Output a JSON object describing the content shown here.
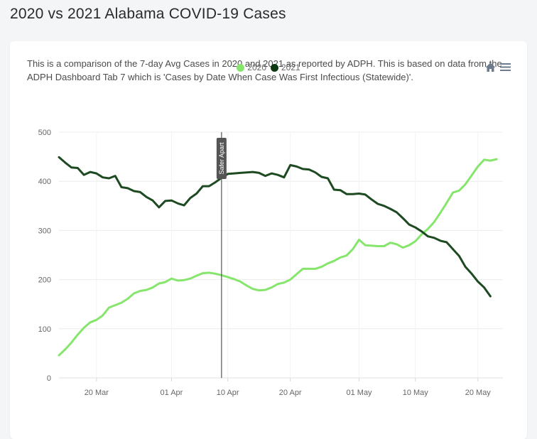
{
  "page": {
    "title": "2020 vs 2021 Alabama COVID-19 Cases",
    "description": "This is a comparison of the 7-day Avg Cases in 2020 and 2021 as reported by ADPH. This is based on data from the ADPH Dashboard Tab 7 which is 'Cases by Date When Case Was First Infectious (Statewide)'."
  },
  "colors": {
    "series_2020": "#86e56c",
    "series_2021": "#1e4a22",
    "legend_2021_dot": "#0c3a10",
    "grid": "#ececec",
    "annotation": "#555555",
    "toolbar_icon": "#6e7b8b"
  },
  "toolbar": {
    "home_icon": "home-icon",
    "menu_icon": "hamburger-menu-icon"
  },
  "chart_data": {
    "type": "line",
    "title": "",
    "xlabel": "",
    "ylabel": "",
    "ylim": [
      0,
      500
    ],
    "yticks": [
      0,
      100,
      200,
      300,
      400,
      500
    ],
    "grid": true,
    "legend_position": "top-center",
    "xlim": [
      "2021-03-14",
      "2021-05-24"
    ],
    "xticks": [
      {
        "date": "2021-03-20",
        "label": "20 Mar"
      },
      {
        "date": "2021-04-01",
        "label": "01 Apr"
      },
      {
        "date": "2021-04-10",
        "label": "10 Apr"
      },
      {
        "date": "2021-04-20",
        "label": "20 Apr"
      },
      {
        "date": "2021-05-01",
        "label": "01 May"
      },
      {
        "date": "2021-05-10",
        "label": "10 May"
      },
      {
        "date": "2021-05-20",
        "label": "20 May"
      }
    ],
    "annotations": [
      {
        "date": "2021-04-09",
        "label": "Safer Apart"
      }
    ],
    "series": [
      {
        "name": "2020",
        "color": "#86e56c",
        "points": [
          [
            "2021-03-14",
            46
          ],
          [
            "2021-03-15",
            58
          ],
          [
            "2021-03-16",
            72
          ],
          [
            "2021-03-17",
            88
          ],
          [
            "2021-03-18",
            102
          ],
          [
            "2021-03-19",
            113
          ],
          [
            "2021-03-20",
            118
          ],
          [
            "2021-03-21",
            127
          ],
          [
            "2021-03-22",
            143
          ],
          [
            "2021-03-23",
            148
          ],
          [
            "2021-03-24",
            153
          ],
          [
            "2021-03-25",
            161
          ],
          [
            "2021-03-26",
            172
          ],
          [
            "2021-03-27",
            177
          ],
          [
            "2021-03-28",
            179
          ],
          [
            "2021-03-29",
            184
          ],
          [
            "2021-03-30",
            192
          ],
          [
            "2021-03-31",
            195
          ],
          [
            "2021-04-01",
            202
          ],
          [
            "2021-04-02",
            198
          ],
          [
            "2021-04-03",
            199
          ],
          [
            "2021-04-04",
            202
          ],
          [
            "2021-04-05",
            208
          ],
          [
            "2021-04-06",
            213
          ],
          [
            "2021-04-07",
            214
          ],
          [
            "2021-04-08",
            212
          ],
          [
            "2021-04-09",
            209
          ],
          [
            "2021-04-10",
            205
          ],
          [
            "2021-04-11",
            201
          ],
          [
            "2021-04-12",
            196
          ],
          [
            "2021-04-13",
            188
          ],
          [
            "2021-04-14",
            181
          ],
          [
            "2021-04-15",
            178
          ],
          [
            "2021-04-16",
            179
          ],
          [
            "2021-04-17",
            184
          ],
          [
            "2021-04-18",
            191
          ],
          [
            "2021-04-19",
            194
          ],
          [
            "2021-04-20",
            200
          ],
          [
            "2021-04-21",
            211
          ],
          [
            "2021-04-22",
            222
          ],
          [
            "2021-04-23",
            222
          ],
          [
            "2021-04-24",
            222
          ],
          [
            "2021-04-25",
            226
          ],
          [
            "2021-04-26",
            233
          ],
          [
            "2021-04-27",
            238
          ],
          [
            "2021-04-28",
            245
          ],
          [
            "2021-04-29",
            249
          ],
          [
            "2021-04-30",
            262
          ],
          [
            "2021-05-01",
            281
          ],
          [
            "2021-05-02",
            270
          ],
          [
            "2021-05-03",
            269
          ],
          [
            "2021-05-04",
            268
          ],
          [
            "2021-05-05",
            268
          ],
          [
            "2021-05-06",
            275
          ],
          [
            "2021-05-07",
            272
          ],
          [
            "2021-05-08",
            265
          ],
          [
            "2021-05-09",
            270
          ],
          [
            "2021-05-10",
            278
          ],
          [
            "2021-05-11",
            292
          ],
          [
            "2021-05-12",
            303
          ],
          [
            "2021-05-13",
            317
          ],
          [
            "2021-05-14",
            336
          ],
          [
            "2021-05-15",
            356
          ],
          [
            "2021-05-16",
            377
          ],
          [
            "2021-05-17",
            381
          ],
          [
            "2021-05-18",
            394
          ],
          [
            "2021-05-19",
            412
          ],
          [
            "2021-05-20",
            430
          ],
          [
            "2021-05-21",
            444
          ],
          [
            "2021-05-22",
            442
          ],
          [
            "2021-05-23",
            445
          ]
        ]
      },
      {
        "name": "2021",
        "color": "#1e4a22",
        "points": [
          [
            "2021-03-14",
            449
          ],
          [
            "2021-03-15",
            438
          ],
          [
            "2021-03-16",
            428
          ],
          [
            "2021-03-17",
            427
          ],
          [
            "2021-03-18",
            413
          ],
          [
            "2021-03-19",
            419
          ],
          [
            "2021-03-20",
            416
          ],
          [
            "2021-03-21",
            408
          ],
          [
            "2021-03-22",
            406
          ],
          [
            "2021-03-23",
            411
          ],
          [
            "2021-03-24",
            388
          ],
          [
            "2021-03-25",
            386
          ],
          [
            "2021-03-26",
            380
          ],
          [
            "2021-03-27",
            378
          ],
          [
            "2021-03-28",
            368
          ],
          [
            "2021-03-29",
            361
          ],
          [
            "2021-03-30",
            347
          ],
          [
            "2021-03-31",
            360
          ],
          [
            "2021-04-01",
            361
          ],
          [
            "2021-04-02",
            355
          ],
          [
            "2021-04-03",
            351
          ],
          [
            "2021-04-04",
            366
          ],
          [
            "2021-04-05",
            375
          ],
          [
            "2021-04-06",
            390
          ],
          [
            "2021-04-07",
            390
          ],
          [
            "2021-04-08",
            398
          ],
          [
            "2021-04-09",
            407
          ],
          [
            "2021-04-10",
            415
          ],
          [
            "2021-04-11",
            416
          ],
          [
            "2021-04-12",
            417
          ],
          [
            "2021-04-13",
            418
          ],
          [
            "2021-04-14",
            419
          ],
          [
            "2021-04-15",
            417
          ],
          [
            "2021-04-16",
            411
          ],
          [
            "2021-04-17",
            416
          ],
          [
            "2021-04-18",
            413
          ],
          [
            "2021-04-19",
            408
          ],
          [
            "2021-04-20",
            433
          ],
          [
            "2021-04-21",
            430
          ],
          [
            "2021-04-22",
            425
          ],
          [
            "2021-04-23",
            424
          ],
          [
            "2021-04-24",
            418
          ],
          [
            "2021-04-25",
            409
          ],
          [
            "2021-04-26",
            406
          ],
          [
            "2021-04-27",
            383
          ],
          [
            "2021-04-28",
            382
          ],
          [
            "2021-04-29",
            374
          ],
          [
            "2021-04-30",
            374
          ],
          [
            "2021-05-01",
            375
          ],
          [
            "2021-05-02",
            373
          ],
          [
            "2021-05-03",
            363
          ],
          [
            "2021-05-04",
            354
          ],
          [
            "2021-05-05",
            350
          ],
          [
            "2021-05-06",
            344
          ],
          [
            "2021-05-07",
            337
          ],
          [
            "2021-05-08",
            325
          ],
          [
            "2021-05-09",
            312
          ],
          [
            "2021-05-10",
            306
          ],
          [
            "2021-05-11",
            298
          ],
          [
            "2021-05-12",
            288
          ],
          [
            "2021-05-13",
            285
          ],
          [
            "2021-05-14",
            279
          ],
          [
            "2021-05-15",
            276
          ],
          [
            "2021-05-16",
            262
          ],
          [
            "2021-05-17",
            248
          ],
          [
            "2021-05-18",
            226
          ],
          [
            "2021-05-19",
            212
          ],
          [
            "2021-05-20",
            196
          ],
          [
            "2021-05-21",
            184
          ],
          [
            "2021-05-22",
            166
          ]
        ]
      }
    ]
  }
}
